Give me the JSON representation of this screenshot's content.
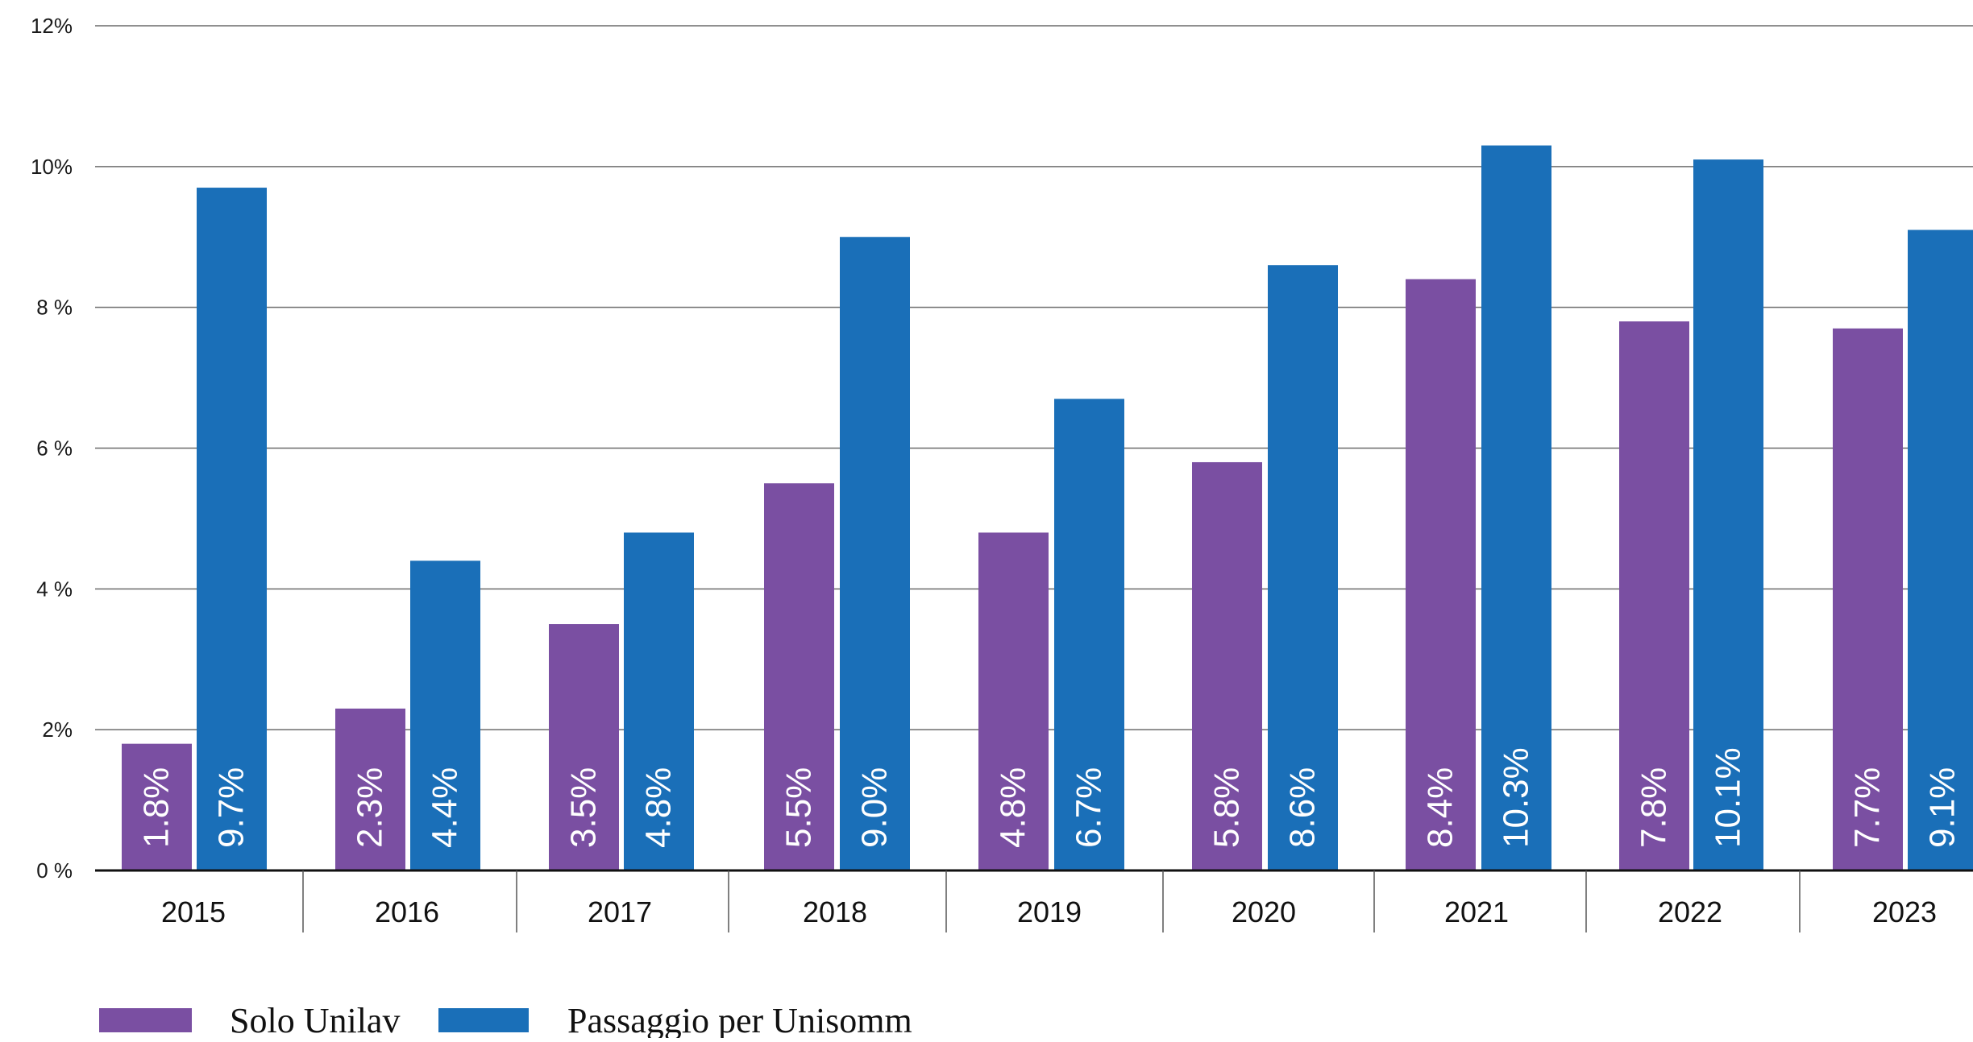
{
  "chart_data": {
    "type": "bar",
    "categories": [
      "2015",
      "2016",
      "2017",
      "2018",
      "2019",
      "2020",
      "2021",
      "2022",
      "2023"
    ],
    "series": [
      {
        "name": "Solo Unilav",
        "color": "#7a4fa2",
        "values": [
          1.8,
          2.3,
          3.5,
          5.5,
          4.8,
          5.8,
          8.4,
          7.8,
          7.7
        ],
        "data_labels": [
          "1.8%",
          "2.3%",
          "3.5%",
          "5.5%",
          "4.8%",
          "5.8%",
          "8.4%",
          "7.8%",
          "7.7%"
        ]
      },
      {
        "name": "Passaggio per Unisomm",
        "color": "#1a6fb8",
        "values": [
          9.7,
          4.4,
          4.8,
          9.0,
          6.7,
          8.6,
          10.3,
          10.1,
          9.1
        ],
        "data_labels": [
          "9.7%",
          "4.4%",
          "4.8%",
          "9.0%",
          "6.7%",
          "8.6%",
          "10.3%",
          "10.1%",
          "9.1%"
        ]
      }
    ],
    "ylim": [
      0,
      12
    ],
    "yticks": [
      0,
      2,
      4,
      6,
      8,
      10,
      12
    ],
    "ytick_labels": [
      "0 %",
      "2%",
      "4 %",
      "6 %",
      "8 %",
      "10%",
      "12%"
    ],
    "grid": true,
    "legend_position": "bottom-left"
  },
  "legend": {
    "item_1_label": "Solo Unilav",
    "item_2_label": "Passaggio per Unisomm"
  }
}
